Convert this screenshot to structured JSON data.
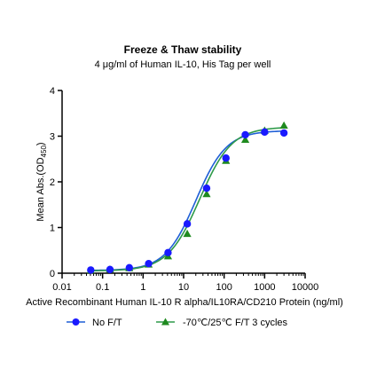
{
  "chart_data": {
    "type": "scatter",
    "title": "Freeze & Thaw stability",
    "subtitle": "4 μg/ml of Human IL-10, His Tag per well",
    "xlabel": "Active Recombinant Human IL-10 R alpha/IL10RA/CD210 Protein (ng/ml)",
    "ylabel_main": "Mean Abs.(OD",
    "ylabel_sub": "450",
    "ylabel_close": ")",
    "x_scale": "log",
    "xlim": [
      0.01,
      10000
    ],
    "ylim": [
      0,
      4
    ],
    "x_tick_values": [
      0.01,
      0.1,
      1,
      10,
      100,
      1000,
      10000
    ],
    "x_tick_labels": [
      "0.01",
      "0.1",
      "1",
      "10",
      "100",
      "1000",
      "10000"
    ],
    "y_tick_values": [
      0,
      1,
      2,
      3,
      4
    ],
    "y_tick_labels": [
      "0",
      "1",
      "2",
      "3",
      "4"
    ],
    "grid": false,
    "legend_position": "bottom",
    "series": [
      {
        "name": "No F/T",
        "marker": "circle",
        "color": "#1a1aff",
        "line_color": "#1f5fd6",
        "x": [
          0.051,
          0.152,
          0.457,
          1.37,
          4.12,
          12.3,
          37.0,
          111,
          333,
          1000,
          3000
        ],
        "y": [
          0.07,
          0.08,
          0.12,
          0.21,
          0.45,
          1.08,
          1.86,
          2.52,
          3.03,
          3.09,
          3.07
        ],
        "curve": [
          0.06,
          3.12,
          20,
          1.15
        ]
      },
      {
        "name": "-70℃/25℃ F/T 3 cycles",
        "marker": "triangle",
        "color": "#1f8a1f",
        "line_color": "#2e9a4a",
        "x": [
          0.051,
          0.152,
          0.457,
          1.37,
          4.12,
          12.3,
          37.0,
          111,
          333,
          1000,
          3000
        ],
        "y": [
          0.06,
          0.08,
          0.11,
          0.19,
          0.37,
          0.86,
          1.73,
          2.46,
          2.92,
          3.12,
          3.23
        ],
        "curve": [
          0.05,
          3.2,
          25,
          1.1
        ]
      }
    ]
  }
}
